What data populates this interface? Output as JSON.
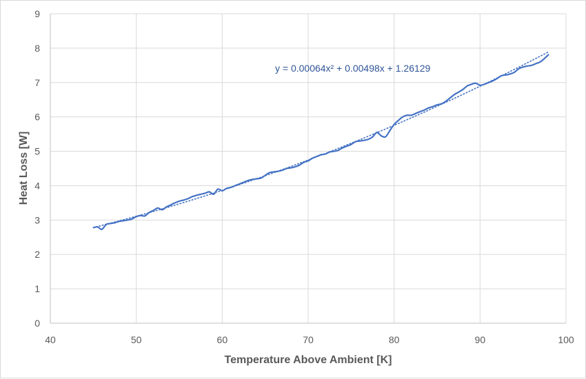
{
  "chart_data": {
    "type": "line",
    "title": "",
    "xlabel": "Temperature Above Ambient [K]",
    "ylabel": "Heat Loss [W]",
    "xlim": [
      40,
      100
    ],
    "ylim": [
      0,
      9
    ],
    "xticks": [
      40,
      50,
      60,
      70,
      80,
      90,
      100
    ],
    "yticks": [
      0,
      1,
      2,
      3,
      4,
      5,
      6,
      7,
      8,
      9
    ],
    "grid": true,
    "legend": "none",
    "colors": {
      "series": "#4472c4",
      "trendline": "#4472c4",
      "grid": "#d9d9d9",
      "text": "#595959"
    },
    "series": [
      {
        "x": [
          45,
          45.5,
          46,
          46.5,
          47,
          47.5,
          48,
          48.5,
          49,
          49.5,
          50,
          50.5,
          51,
          51.5,
          52,
          52.5,
          53,
          53.5,
          54,
          54.5,
          55,
          55.5,
          56,
          56.5,
          57,
          57.5,
          58,
          58.5,
          59,
          59.5,
          60,
          60.5,
          61,
          61.5,
          62,
          62.5,
          63,
          63.5,
          64,
          64.5,
          65,
          65.5,
          66,
          66.5,
          67,
          67.5,
          68,
          68.5,
          69,
          69.5,
          70,
          70.5,
          71,
          71.5,
          72,
          72.5,
          73,
          73.5,
          74,
          74.5,
          75,
          75.5,
          76,
          76.5,
          77,
          77.5,
          78,
          78.5,
          79,
          79.5,
          80,
          80.5,
          81,
          81.5,
          82,
          82.5,
          83,
          83.5,
          84,
          84.5,
          85,
          85.5,
          86,
          86.5,
          87,
          87.5,
          88,
          88.5,
          89,
          89.5,
          90,
          90.5,
          91,
          91.5,
          92,
          92.5,
          93,
          93.5,
          94,
          94.5,
          95,
          95.5,
          96,
          96.5,
          97,
          97.5,
          98
        ],
        "y": [
          2.78,
          2.8,
          2.73,
          2.87,
          2.9,
          2.92,
          2.96,
          2.98,
          3.0,
          3.03,
          3.1,
          3.13,
          3.12,
          3.22,
          3.28,
          3.35,
          3.3,
          3.38,
          3.44,
          3.5,
          3.55,
          3.58,
          3.62,
          3.68,
          3.72,
          3.75,
          3.78,
          3.82,
          3.75,
          3.9,
          3.85,
          3.92,
          3.95,
          4.0,
          4.05,
          4.1,
          4.15,
          4.18,
          4.2,
          4.22,
          4.3,
          4.38,
          4.4,
          4.42,
          4.45,
          4.5,
          4.52,
          4.55,
          4.6,
          4.68,
          4.72,
          4.8,
          4.85,
          4.9,
          4.92,
          4.98,
          5.0,
          5.03,
          5.1,
          5.15,
          5.2,
          5.28,
          5.3,
          5.32,
          5.35,
          5.42,
          5.55,
          5.45,
          5.42,
          5.6,
          5.78,
          5.9,
          6.0,
          6.05,
          6.05,
          6.1,
          6.15,
          6.2,
          6.26,
          6.3,
          6.35,
          6.38,
          6.45,
          6.55,
          6.65,
          6.72,
          6.8,
          6.9,
          6.95,
          6.98,
          6.92,
          6.95,
          7.0,
          7.05,
          7.12,
          7.2,
          7.22,
          7.25,
          7.3,
          7.4,
          7.45,
          7.48,
          7.5,
          7.55,
          7.6,
          7.7,
          7.82
        ]
      }
    ],
    "trendline": {
      "type": "polynomial",
      "order": 2,
      "coefficients": [
        0.00064,
        0.00498,
        1.26129
      ],
      "equation_text": "y = 0.00064x² + 0.00498x + 1.26129"
    }
  }
}
